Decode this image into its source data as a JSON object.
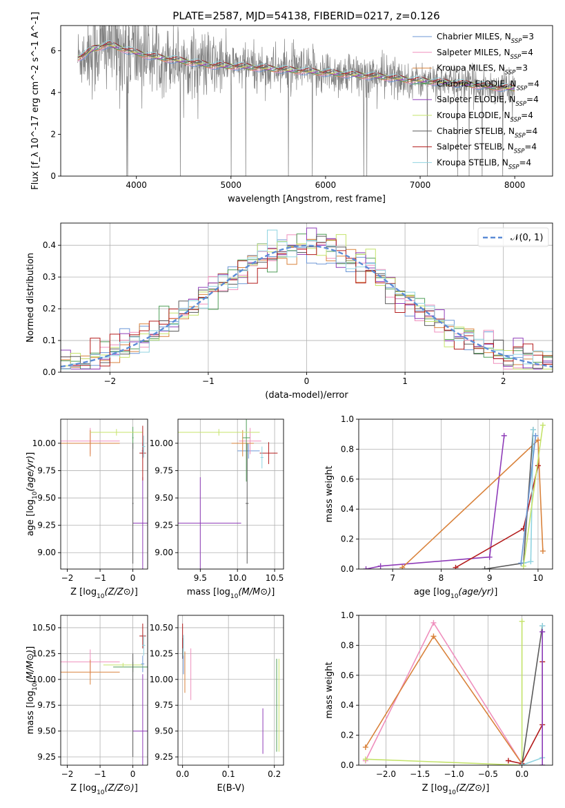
{
  "title": "PLATE=2587, MJD=54138, FIBERID=0217, z=0.126",
  "colors": {
    "Chabrier MILES": "#6b96d6",
    "Salpeter MILES": "#ef8fbd",
    "Kroupa MILES": "#d9823b",
    "Chabrier ELODIE": "#4f9e57",
    "Salpeter ELODIE": "#8e3bb8",
    "Kroupa ELODIE": "#c4e36a",
    "Chabrier STELIB": "#5a5a5a",
    "Salpeter STELIB": "#b31b1b",
    "Kroupa STELIB": "#8fd3e0",
    "data": "#7f7f7f",
    "normal": "#5b8bd6"
  },
  "chart_data": [
    {
      "type": "line",
      "xlabel": "wavelength [Angstrom, rest frame]",
      "ylabel": "Flux [f_λ 10^-17 erg cm^-2 s^-1 A^-1]",
      "xlim": [
        3200,
        8400
      ],
      "ylim": [
        0,
        7.2
      ],
      "xticks": [
        4000,
        5000,
        6000,
        7000,
        8000
      ],
      "yticks": [
        0,
        2,
        4,
        6
      ],
      "grid": false,
      "legend": "right",
      "legend_entries": [
        {
          "label": "Chabrier MILES, N",
          "sub": "SSP",
          "suffix": "=3"
        },
        {
          "label": "Salpeter MILES, N",
          "sub": "SSP",
          "suffix": "=4"
        },
        {
          "label": "Kroupa MILES, N",
          "sub": "SSP",
          "suffix": "=3"
        },
        {
          "label": "Chabrier ELODIE, N",
          "sub": "SSP",
          "suffix": "=4"
        },
        {
          "label": "Salpeter ELODIE, N",
          "sub": "SSP",
          "suffix": "=4"
        },
        {
          "label": "Kroupa ELODIE, N",
          "sub": "SSP",
          "suffix": "=4"
        },
        {
          "label": "Chabrier STELIB, N",
          "sub": "SSP",
          "suffix": "=4"
        },
        {
          "label": "Salpeter STELIB, N",
          "sub": "SSP",
          "suffix": "=4"
        },
        {
          "label": "Kroupa STELIB, N",
          "sub": "SSP",
          "suffix": "=4"
        }
      ],
      "model_continuum": {
        "x": [
          3350,
          3450,
          3550,
          3700,
          3850,
          4000,
          4200,
          4500,
          4800,
          5100,
          5400,
          5700,
          6000,
          6300,
          6600,
          6900,
          7200,
          7500,
          7800,
          8000
        ],
        "y": [
          5.6,
          5.8,
          6.1,
          6.3,
          6.1,
          5.9,
          5.7,
          5.5,
          5.3,
          5.25,
          5.15,
          5.05,
          4.95,
          4.85,
          4.75,
          4.6,
          4.5,
          4.4,
          4.25,
          4.2
        ]
      }
    },
    {
      "type": "area",
      "xlabel": "(data-model)/error",
      "ylabel": "Normed distribution",
      "xlim": [
        -2.5,
        2.5
      ],
      "ylim": [
        0,
        0.47
      ],
      "xticks": [
        -2,
        -1,
        0,
        1,
        2
      ],
      "yticks": [
        0.0,
        0.1,
        0.2,
        0.3,
        0.4
      ],
      "grid": true,
      "legend": "top-right",
      "legend_label": "𝒩(0, 1)",
      "bins": 50,
      "normal": {
        "mu": 0,
        "sigma": 1
      }
    },
    {
      "type": "scatter",
      "xlabel": "Z [log10(Z/Z⊙)]",
      "ylabel": "age [log10(age/yr)]",
      "xlim": [
        -2.2,
        0.45
      ],
      "ylim": [
        8.85,
        10.22
      ],
      "xticks": [
        -2,
        -1,
        0
      ],
      "yticks": [
        9.0,
        9.25,
        9.5,
        9.75,
        10.0
      ],
      "grid": true,
      "points": [
        {
          "model": "Chabrier MILES",
          "x": 0.3,
          "y": 9.93,
          "xerr": 0.03,
          "yerr": 0.07
        },
        {
          "model": "Salpeter MILES",
          "x": -1.3,
          "y": 10.02,
          "xerr": 0.9,
          "yerr": 0.12
        },
        {
          "model": "Kroupa MILES",
          "x": -1.3,
          "y": 10.0,
          "xerr": 0.9,
          "yerr": 0.12
        },
        {
          "model": "Chabrier ELODIE",
          "x": 0.0,
          "y": 10.05,
          "xerr": 0.02,
          "yerr": 0.1
        },
        {
          "model": "Salpeter ELODIE",
          "x": 0.3,
          "y": 9.27,
          "xerr": 0.3,
          "yerr": 0.42
        },
        {
          "model": "Kroupa ELODIE",
          "x": -0.5,
          "y": 10.1,
          "xerr": 0.8,
          "yerr": 0.03
        },
        {
          "model": "Chabrier STELIB",
          "x": 0.0,
          "y": 9.45,
          "xerr": 0.02,
          "yerr": 0.55
        },
        {
          "model": "Salpeter STELIB",
          "x": 0.3,
          "y": 9.91,
          "xerr": 0.1,
          "yerr": 0.25
        },
        {
          "model": "Kroupa STELIB",
          "x": 0.33,
          "y": 9.97,
          "xerr": 0.05,
          "yerr": 0.1
        }
      ]
    },
    {
      "type": "scatter",
      "xlabel": "mass [log10(M/M⊙)]",
      "ylabel": "",
      "xlim": [
        9.2,
        10.62
      ],
      "ylim": [
        8.85,
        10.22
      ],
      "xticks": [
        9.5,
        10.0,
        10.5
      ],
      "yticks": [
        9.0,
        9.25,
        9.5,
        9.75,
        10.0
      ],
      "grid": true,
      "points": [
        {
          "model": "Chabrier MILES",
          "x": 10.15,
          "y": 9.93,
          "xerr": 0.15,
          "yerr": 0.07
        },
        {
          "model": "Salpeter MILES",
          "x": 10.17,
          "y": 10.02,
          "xerr": 0.15,
          "yerr": 0.12
        },
        {
          "model": "Kroupa MILES",
          "x": 10.07,
          "y": 10.0,
          "xerr": 0.15,
          "yerr": 0.12
        },
        {
          "model": "Chabrier ELODIE",
          "x": 10.12,
          "y": 10.05,
          "xerr": 0.05,
          "yerr": 0.4
        },
        {
          "model": "Salpeter ELODIE",
          "x": 9.5,
          "y": 9.27,
          "xerr": 0.55,
          "yerr": 0.42
        },
        {
          "model": "Kroupa ELODIE",
          "x": 9.75,
          "y": 10.1,
          "xerr": 0.55,
          "yerr": 0.03
        },
        {
          "model": "Chabrier STELIB",
          "x": 10.13,
          "y": 9.45,
          "xerr": 0.02,
          "yerr": 0.55
        },
        {
          "model": "Salpeter STELIB",
          "x": 10.42,
          "y": 9.91,
          "xerr": 0.12,
          "yerr": 0.1
        },
        {
          "model": "Kroupa STELIB",
          "x": 10.33,
          "y": 9.87,
          "xerr": 0.02,
          "yerr": 0.1
        }
      ]
    },
    {
      "type": "line",
      "xlabel": "age [log10(age/yr)]",
      "ylabel": "mass weight",
      "xlim": [
        6.3,
        10.3
      ],
      "ylim": [
        0,
        1.0
      ],
      "xticks": [
        7,
        8,
        9,
        10
      ],
      "yticks": [
        0.0,
        0.2,
        0.4,
        0.6,
        0.8,
        1.0
      ],
      "grid": true,
      "series": [
        {
          "model": "Salpeter ELODIE",
          "x": [
            6.45,
            6.75,
            9.0,
            9.3
          ],
          "y": [
            0.0,
            0.02,
            0.08,
            0.89
          ]
        },
        {
          "model": "Kroupa MILES",
          "x": [
            7.2,
            10.0,
            10.1
          ],
          "y": [
            0.01,
            0.86,
            0.12
          ]
        },
        {
          "model": "Salpeter STELIB",
          "x": [
            8.3,
            9.7,
            10.0
          ],
          "y": [
            0.01,
            0.27,
            0.69
          ]
        },
        {
          "model": "Chabrier STELIB",
          "x": [
            8.9,
            9.7,
            9.9
          ],
          "y": [
            0.0,
            0.04,
            0.93
          ]
        },
        {
          "model": "Kroupa STELIB",
          "x": [
            9.7,
            9.85,
            9.9
          ],
          "y": [
            0.04,
            0.05,
            0.93
          ]
        },
        {
          "model": "Kroupa ELODIE",
          "x": [
            9.7,
            10.1
          ],
          "y": [
            0.02,
            0.96
          ]
        },
        {
          "model": "Chabrier MILES",
          "x": [
            9.65,
            9.95
          ],
          "y": [
            0.04,
            0.89
          ]
        }
      ]
    },
    {
      "type": "scatter",
      "xlabel": "Z [log10(Z/Z⊙)]",
      "ylabel": "mass [log10(M/M⊙)]",
      "xlim": [
        -2.2,
        0.45
      ],
      "ylim": [
        9.17,
        10.62
      ],
      "xticks": [
        -2,
        -1,
        0
      ],
      "yticks": [
        9.25,
        9.5,
        9.75,
        10.0,
        10.25,
        10.5
      ],
      "grid": true,
      "points": [
        {
          "model": "Chabrier MILES",
          "x": 0.3,
          "y": 10.15,
          "xerr": 0.05,
          "yerr": 0.08
        },
        {
          "model": "Salpeter MILES",
          "x": -1.3,
          "y": 10.17,
          "xerr": 0.9,
          "yerr": 0.12
        },
        {
          "model": "Kroupa MILES",
          "x": -1.3,
          "y": 10.07,
          "xerr": 0.9,
          "yerr": 0.12
        },
        {
          "model": "Chabrier ELODIE",
          "x": 0.0,
          "y": 10.12,
          "xerr": 0.6,
          "yerr": 0.05
        },
        {
          "model": "Salpeter ELODIE",
          "x": 0.3,
          "y": 9.5,
          "xerr": 0.3,
          "yerr": 0.55
        },
        {
          "model": "Kroupa ELODIE",
          "x": -0.3,
          "y": 10.14,
          "xerr": 0.6,
          "yerr": 0.02
        },
        {
          "model": "Chabrier STELIB",
          "x": 0.0,
          "y": 9.75,
          "xerr": 0.02,
          "yerr": 0.5
        },
        {
          "model": "Salpeter STELIB",
          "x": 0.3,
          "y": 10.42,
          "xerr": 0.1,
          "yerr": 0.12
        },
        {
          "model": "Kroupa STELIB",
          "x": 0.33,
          "y": 10.33,
          "xerr": 0.05,
          "yerr": 0.1
        }
      ]
    },
    {
      "type": "scatter",
      "xlabel": "E(B-V)",
      "ylabel": "",
      "xlim": [
        -0.01,
        0.22
      ],
      "ylim": [
        9.17,
        10.62
      ],
      "xticks": [
        0.0,
        0.1,
        0.2
      ],
      "yticks": [
        9.25,
        9.5,
        9.75,
        10.0,
        10.25,
        10.5
      ],
      "grid": true,
      "points": [
        {
          "model": "Chabrier MILES",
          "x": 0.002,
          "y": 10.15,
          "xerr": 0,
          "yerr": 0.1
        },
        {
          "model": "Salpeter MILES",
          "x": 0.018,
          "y": 10.05,
          "xerr": 0,
          "yerr": 0.25
        },
        {
          "model": "Kroupa MILES",
          "x": 0.005,
          "y": 10.07,
          "xerr": 0,
          "yerr": 0.2
        },
        {
          "model": "Chabrier ELODIE",
          "x": 0.205,
          "y": 9.75,
          "xerr": 0,
          "yerr": 0.45
        },
        {
          "model": "Salpeter ELODIE",
          "x": 0.175,
          "y": 9.5,
          "xerr": 0,
          "yerr": 0.22
        },
        {
          "model": "Kroupa ELODIE",
          "x": 0.21,
          "y": 9.75,
          "xerr": 0,
          "yerr": 0.45
        },
        {
          "model": "Chabrier STELIB",
          "x": 0.0,
          "y": 10.3,
          "xerr": 0,
          "yerr": 0.1
        },
        {
          "model": "Salpeter STELIB",
          "x": 0.0,
          "y": 10.42,
          "xerr": 0,
          "yerr": 0.12
        },
        {
          "model": "Kroupa STELIB",
          "x": 0.002,
          "y": 10.33,
          "xerr": 0,
          "yerr": 0.1
        }
      ]
    },
    {
      "type": "line",
      "xlabel": "Z [log10(Z/Z⊙)]",
      "ylabel": "mass weight",
      "xlim": [
        -2.4,
        0.45
      ],
      "ylim": [
        0,
        1.0
      ],
      "xticks": [
        -2.0,
        -1.5,
        -1.0,
        -0.5,
        0.0
      ],
      "yticks": [
        0.0,
        0.2,
        0.4,
        0.6,
        0.8,
        1.0
      ],
      "grid": true,
      "series": [
        {
          "model": "Salpeter MILES",
          "x": [
            -2.3,
            -1.3,
            0.0
          ],
          "y": [
            0.03,
            0.95,
            0.01
          ]
        },
        {
          "model": "Kroupa MILES",
          "x": [
            -2.3,
            -1.3,
            0.0
          ],
          "y": [
            0.12,
            0.86,
            0.01
          ]
        },
        {
          "model": "Kroupa ELODIE",
          "x": [
            -2.3,
            0.0,
            0.0
          ],
          "y": [
            0.04,
            0.0,
            0.96
          ]
        },
        {
          "model": "Salpeter STELIB",
          "x": [
            -0.2,
            0.0,
            0.3,
            0.3
          ],
          "y": [
            0.03,
            0.01,
            0.27,
            0.69
          ]
        },
        {
          "model": "Chabrier STELIB",
          "x": [
            0.0,
            0.3
          ],
          "y": [
            0.0,
            0.93
          ]
        },
        {
          "model": "Kroupa STELIB",
          "x": [
            0.0,
            0.3,
            0.3
          ],
          "y": [
            0.0,
            0.05,
            0.93
          ]
        },
        {
          "model": "Salpeter ELODIE",
          "x": [
            0.3,
            0.3
          ],
          "y": [
            0.0,
            0.89
          ]
        }
      ]
    }
  ]
}
